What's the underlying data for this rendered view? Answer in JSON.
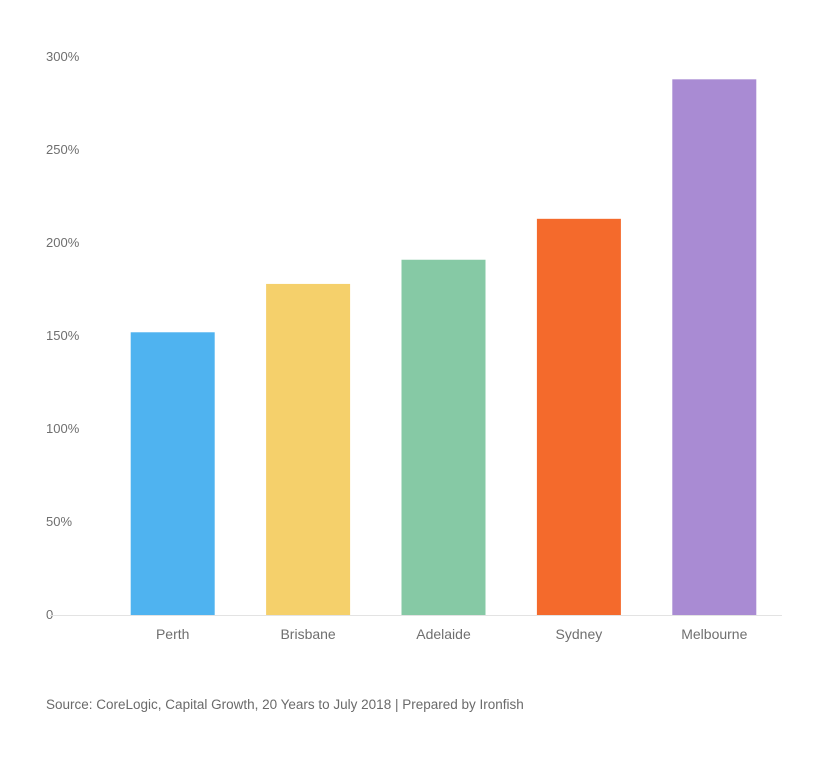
{
  "chart_data": {
    "type": "bar",
    "categories": [
      "Perth",
      "Brisbane",
      "Adelaide",
      "Sydney",
      "Melbourne"
    ],
    "values": [
      152,
      178,
      191,
      213,
      288
    ],
    "colors": [
      "#4fb3f0",
      "#f5d06b",
      "#86c9a5",
      "#f46a2c",
      "#a98bd3"
    ],
    "ylim": [
      0,
      300
    ],
    "yticks": [
      0,
      50,
      100,
      150,
      200,
      250,
      300
    ],
    "ytick_labels": [
      "0",
      "50%",
      "100%",
      "150%",
      "200%",
      "250%",
      "300%"
    ],
    "title": "",
    "xlabel": "",
    "ylabel": "",
    "grid": false,
    "legend": "none"
  },
  "source_note": "Source: CoreLogic, Capital Growth, 20 Years to July 2018 | Prepared by Ironfish"
}
